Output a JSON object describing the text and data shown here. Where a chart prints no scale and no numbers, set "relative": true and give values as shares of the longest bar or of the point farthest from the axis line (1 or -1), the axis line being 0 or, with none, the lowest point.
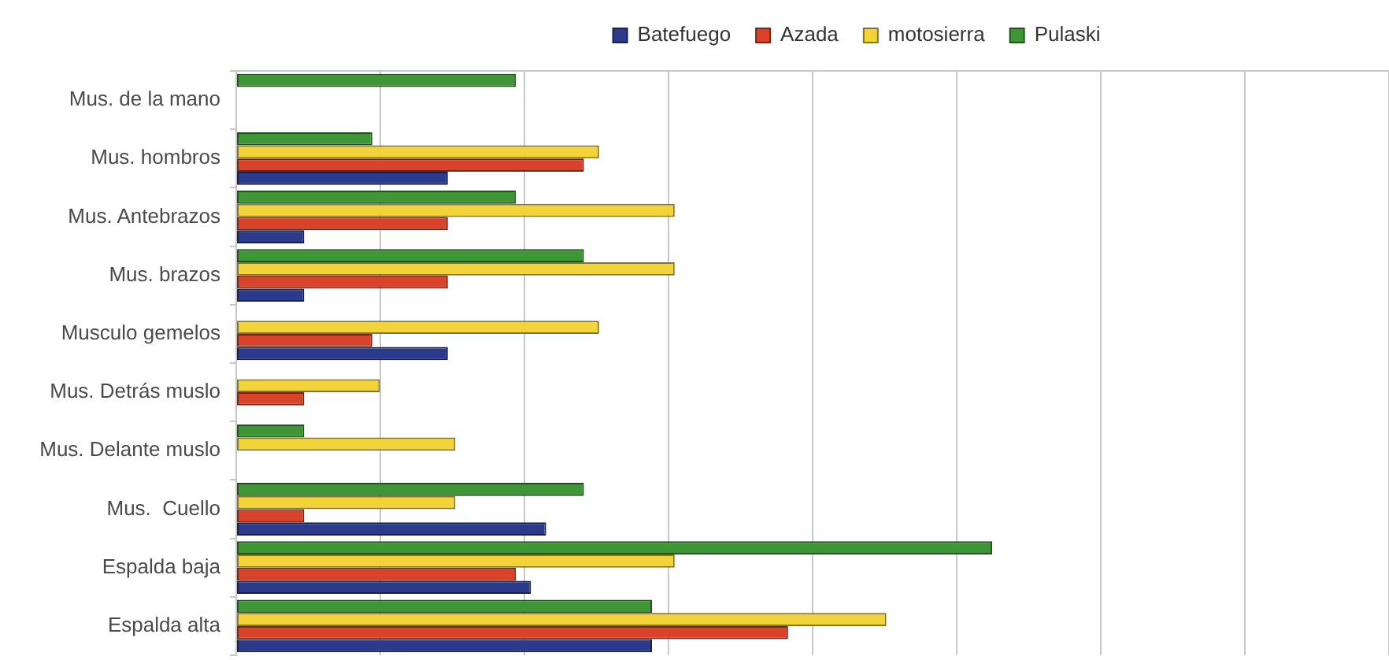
{
  "chart_data": {
    "type": "bar",
    "orientation": "horizontal",
    "relative": true,
    "categories": [
      "Mus. de la mano",
      "Mus. hombros",
      "Mus. Antebrazos",
      "Mus. brazos",
      "Musculo gemelos",
      "Mus. Detrás muslo",
      "Mus. Delante muslo",
      "Mus.  Cuello",
      "Espalda baja",
      "Espalda alta"
    ],
    "series": [
      {
        "name": "Batefuego",
        "color": "#2b3a8a",
        "values": [
          null,
          0.28,
          0.09,
          0.09,
          0.28,
          null,
          null,
          0.41,
          0.39,
          0.55
        ]
      },
      {
        "name": "Azada",
        "color": "#d8432a",
        "values": [
          null,
          0.46,
          0.28,
          0.28,
          0.18,
          0.09,
          null,
          0.09,
          0.37,
          0.73
        ]
      },
      {
        "name": "motosierra",
        "color": "#f3d33a",
        "values": [
          null,
          0.48,
          0.58,
          0.58,
          0.48,
          0.19,
          0.29,
          0.29,
          0.58,
          0.86
        ]
      },
      {
        "name": "Pulaski",
        "color": "#3e9636",
        "values": [
          0.37,
          0.18,
          0.37,
          0.46,
          null,
          null,
          0.09,
          0.46,
          1,
          0.55
        ]
      }
    ],
    "grid": "x",
    "legend": "top"
  }
}
